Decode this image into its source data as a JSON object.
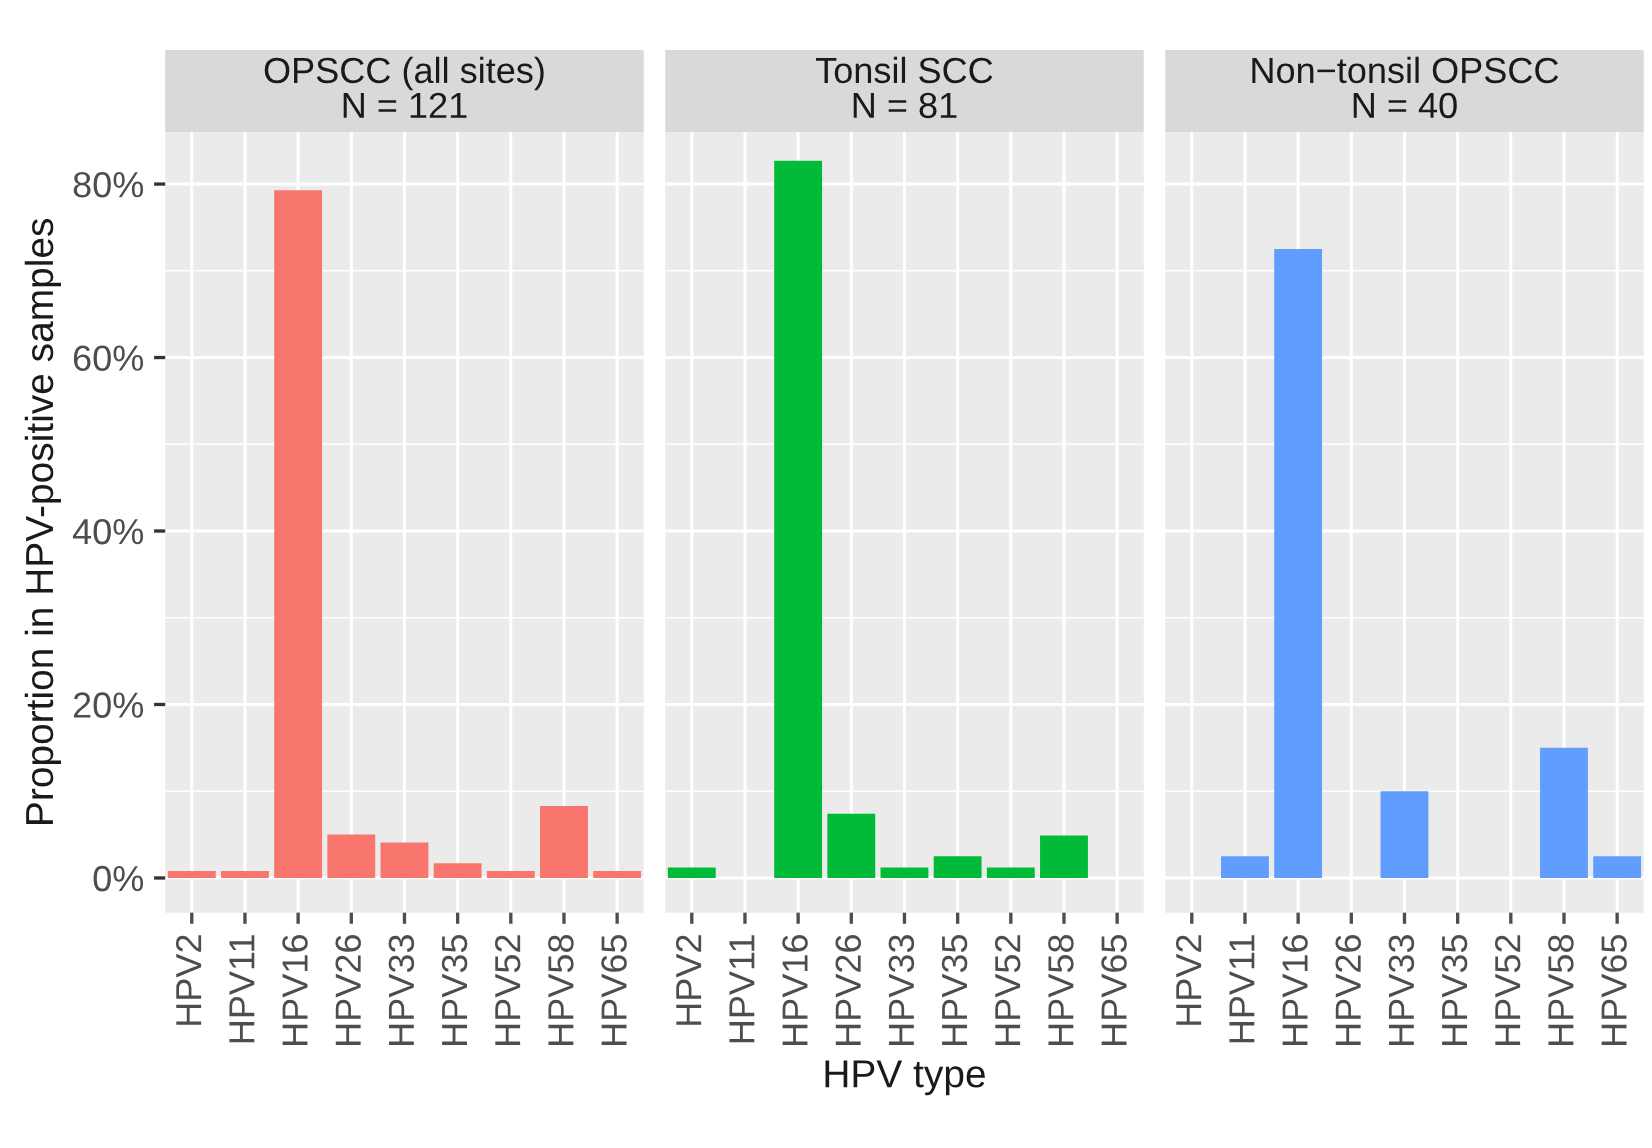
{
  "chart_data": [
    {
      "type": "bar",
      "title": "OPSCC (all sites)",
      "subtitle": "N = 121",
      "ylabel": "Proportion in HPV-positive samples",
      "categories": [
        "HPV2",
        "HPV11",
        "HPV16",
        "HPV26",
        "HPV33",
        "HPV35",
        "HPV52",
        "HPV58",
        "HPV65"
      ],
      "series": [
        {
          "color": "#f8766d",
          "values": [
            0.8,
            0.8,
            79.3,
            5.0,
            4.1,
            1.7,
            0.8,
            8.3,
            0.8
          ]
        }
      ],
      "ylim": [
        -4,
        86
      ],
      "yticks": [
        {
          "value": 0,
          "label": "0%"
        },
        {
          "value": 20,
          "label": "20%"
        },
        {
          "value": 40,
          "label": "40%"
        },
        {
          "value": 60,
          "label": "60%"
        },
        {
          "value": 80,
          "label": "80%"
        }
      ],
      "grid": true
    },
    {
      "type": "bar",
      "title": "Tonsil SCC",
      "subtitle": "N = 81",
      "xlabel": "HPV type",
      "categories": [
        "HPV2",
        "HPV11",
        "HPV16",
        "HPV26",
        "HPV33",
        "HPV35",
        "HPV52",
        "HPV58",
        "HPV65"
      ],
      "series": [
        {
          "color": "#00ba38",
          "values": [
            1.2,
            0,
            82.7,
            7.4,
            1.2,
            2.5,
            1.2,
            4.9,
            0
          ]
        }
      ],
      "ylim": [
        -4,
        86
      ],
      "yticks": [
        0,
        20,
        40,
        60,
        80
      ],
      "grid": true,
      "tick_labels": "x"
    },
    {
      "type": "bar",
      "title": "Non−tonsil OPSCC",
      "subtitle": "N = 40",
      "categories": [
        "HPV2",
        "HPV11",
        "HPV16",
        "HPV26",
        "HPV33",
        "HPV35",
        "HPV52",
        "HPV58",
        "HPV65"
      ],
      "series": [
        {
          "color": "#619cff",
          "values": [
            0,
            2.5,
            72.5,
            0,
            10.0,
            0,
            0,
            15.0,
            2.5
          ]
        }
      ],
      "ylim": [
        -4,
        86
      ],
      "yticks": [
        0,
        20,
        40,
        60,
        80
      ],
      "grid": true,
      "tick_labels": "x"
    }
  ]
}
